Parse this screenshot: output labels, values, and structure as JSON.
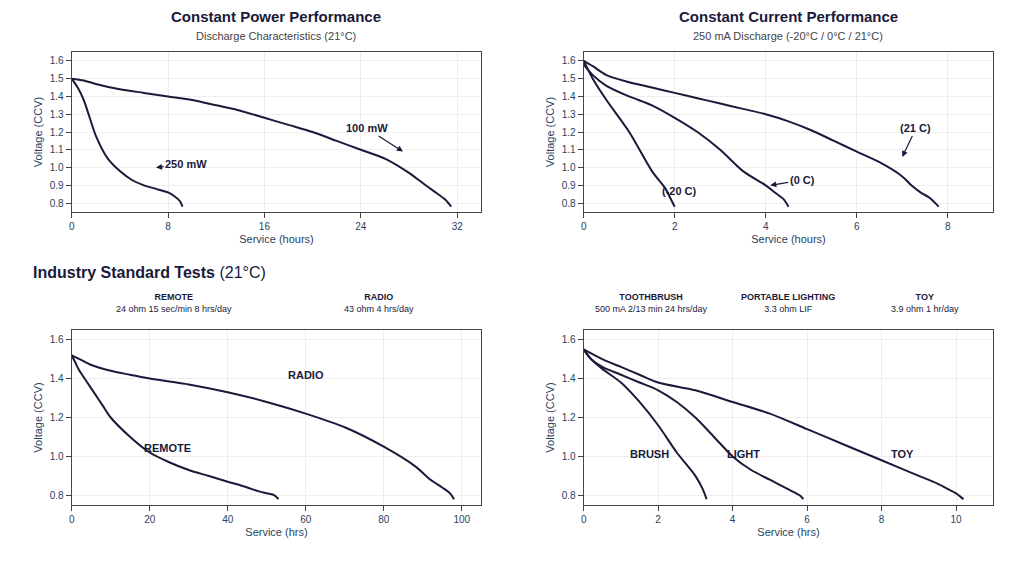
{
  "chart_data": [
    {
      "type": "line",
      "title": "Constant Power Performance",
      "subtitle": "Discharge Characteristics (21°C)",
      "x_label": "Service (hours)",
      "y_label": "Voltage (CCV)",
      "xlim": [
        0,
        34
      ],
      "ylim": [
        0.75,
        1.65
      ],
      "xticks": [
        0,
        8,
        16,
        24,
        32
      ],
      "yticks": [
        0.8,
        0.9,
        {
          "value": 1,
          "label": "1.0"
        },
        1.1,
        1.2,
        1.3,
        1.4,
        1.5,
        1.6
      ],
      "grid": true,
      "series": [
        {
          "color": "#1a1a3a",
          "x": [
            0,
            1,
            2,
            4,
            6,
            8,
            10,
            12,
            14,
            16,
            18,
            20,
            22,
            24,
            26,
            28,
            29,
            30,
            31,
            31.5
          ],
          "values": [
            1.5,
            1.49,
            1.47,
            1.44,
            1.42,
            1.4,
            1.38,
            1.35,
            1.32,
            1.28,
            1.24,
            1.2,
            1.15,
            1.1,
            1.05,
            0.97,
            0.92,
            0.87,
            0.82,
            0.78
          ]
        },
        {
          "color": "#1a1a3a",
          "x": [
            0,
            0.5,
            1,
            1.5,
            2,
            3,
            4,
            5,
            6,
            7,
            8,
            8.5,
            9,
            9.2
          ],
          "values": [
            1.5,
            1.45,
            1.38,
            1.28,
            1.18,
            1.05,
            0.98,
            0.93,
            0.9,
            0.88,
            0.86,
            0.84,
            0.81,
            0.78
          ]
        }
      ],
      "annotations": [
        {
          "text": "100 mW",
          "x": 24.5,
          "y": 1.22,
          "arrow_x": 27.5,
          "arrow_y": 1.09
        },
        {
          "text": "250 mW",
          "x": 9.5,
          "y": 1.02,
          "arrow_x": 7.0,
          "arrow_y": 1.0
        }
      ]
    },
    {
      "type": "line",
      "title": "Constant Current Performance",
      "subtitle": "250 mA Discharge (-20°C / 0°C / 21°C)",
      "x_label": "Service (hours)",
      "y_label": "Voltage (CCV)",
      "xlim": [
        0,
        9
      ],
      "ylim": [
        0.75,
        1.65
      ],
      "xticks": [
        0,
        2,
        4,
        6,
        8
      ],
      "yticks": [
        0.8,
        0.9,
        {
          "value": 1,
          "label": "1.0"
        },
        1.1,
        1.2,
        1.3,
        1.4,
        1.5,
        1.6
      ],
      "grid": true,
      "series": [
        {
          "color": "#1a1a3a",
          "x": [
            0,
            0.2,
            0.5,
            1,
            1.5,
            2,
            2.5,
            3,
            3.5,
            4,
            4.5,
            5,
            5.5,
            6,
            6.5,
            7,
            7.2,
            7.4,
            7.6,
            7.8
          ],
          "values": [
            1.6,
            1.57,
            1.52,
            1.48,
            1.45,
            1.42,
            1.39,
            1.36,
            1.33,
            1.3,
            1.26,
            1.21,
            1.15,
            1.09,
            1.03,
            0.95,
            0.9,
            0.86,
            0.83,
            0.78
          ]
        },
        {
          "color": "#1a1a3a",
          "x": [
            0,
            0.2,
            0.5,
            1,
            1.5,
            2,
            2.5,
            3,
            3.5,
            4,
            4.2,
            4.4,
            4.5
          ],
          "values": [
            1.58,
            1.52,
            1.46,
            1.4,
            1.35,
            1.28,
            1.2,
            1.1,
            0.98,
            0.9,
            0.86,
            0.82,
            0.78
          ]
        },
        {
          "color": "#1a1a3a",
          "x": [
            0,
            0.2,
            0.5,
            1,
            1.5,
            1.8,
            1.9,
            2.0
          ],
          "values": [
            1.6,
            1.5,
            1.38,
            1.2,
            0.98,
            0.88,
            0.83,
            0.78
          ]
        }
      ],
      "annotations": [
        {
          "text": "(21 C)",
          "x": 7.3,
          "y": 1.22,
          "arrow_x": 7.0,
          "arrow_y": 1.06
        },
        {
          "text": "(0 C)",
          "x": 4.8,
          "y": 0.93,
          "arrow_x": 4.1,
          "arrow_y": 0.9
        },
        {
          "text": "(-20 C)",
          "x": 2.1,
          "y": 0.87,
          "arrow_x": 1.75,
          "arrow_y": 0.84
        }
      ]
    },
    {
      "type": "line",
      "title": "Industry Standard Tests",
      "subtitle": "(21°C)",
      "x_label": "Service (hrs)",
      "y_label": "Voltage (CCV)",
      "xlim": [
        0,
        105
      ],
      "ylim": [
        0.75,
        1.65
      ],
      "xticks": [
        0,
        20,
        40,
        60,
        80,
        100
      ],
      "yticks": [
        0.8,
        {
          "value": 1,
          "label": "1.0"
        },
        1.2,
        1.4,
        1.6
      ],
      "grid": true,
      "series": [
        {
          "color": "#1a1a3a",
          "x": [
            0,
            2,
            5,
            10,
            15,
            20,
            30,
            40,
            50,
            60,
            70,
            80,
            88,
            92,
            95,
            97,
            98
          ],
          "values": [
            1.52,
            1.5,
            1.47,
            1.44,
            1.42,
            1.4,
            1.37,
            1.33,
            1.28,
            1.22,
            1.15,
            1.05,
            0.95,
            0.88,
            0.84,
            0.81,
            0.78
          ]
        },
        {
          "color": "#1a1a3a",
          "x": [
            0,
            1,
            2,
            4,
            6,
            8,
            10,
            15,
            20,
            25,
            30,
            35,
            40,
            45,
            48,
            50,
            52,
            53
          ],
          "values": [
            1.52,
            1.48,
            1.44,
            1.38,
            1.32,
            1.26,
            1.2,
            1.1,
            1.02,
            0.97,
            0.93,
            0.9,
            0.87,
            0.84,
            0.82,
            0.81,
            0.8,
            0.78
          ]
        }
      ],
      "annotations": [
        {
          "text": "RADIO",
          "x": 55,
          "y": 1.38
        },
        {
          "text": "REMOTE",
          "x": 18,
          "y": 1.0
        },
        {
          "text": "REMOTE\n24 ohm 15 sec/min 8 hrs/day"
        },
        {
          "text": "RADIO\n43 ohm 4 hrs/day"
        }
      ]
    },
    {
      "type": "line",
      "x_label": "Service (hrs)",
      "y_label": "Voltage (CCV)",
      "xlim": [
        0,
        11
      ],
      "ylim": [
        0.75,
        1.65
      ],
      "xticks": [
        0,
        2,
        4,
        6,
        8,
        10
      ],
      "yticks": [
        0.8,
        {
          "value": 1,
          "label": "1.0"
        },
        1.2,
        1.4,
        1.6
      ],
      "grid": true,
      "series": [
        {
          "color": "#1a1a3a",
          "x": [
            0,
            0.2,
            0.5,
            1,
            1.5,
            2,
            2.5,
            3,
            3.2,
            3.3
          ],
          "values": [
            1.55,
            1.5,
            1.45,
            1.38,
            1.28,
            1.16,
            1.02,
            0.9,
            0.83,
            0.78
          ]
        },
        {
          "color": "#1a1a3a",
          "x": [
            0,
            0.2,
            0.5,
            1,
            1.5,
            2,
            2.5,
            3,
            3.5,
            4,
            4.5,
            5,
            5.5,
            5.8,
            5.9
          ],
          "values": [
            1.55,
            1.5,
            1.46,
            1.42,
            1.38,
            1.34,
            1.28,
            1.2,
            1.1,
            1.0,
            0.93,
            0.88,
            0.83,
            0.8,
            0.78
          ]
        },
        {
          "color": "#1a1a3a",
          "x": [
            0,
            0.5,
            1,
            1.5,
            2,
            3,
            4,
            5,
            6,
            7,
            8,
            9,
            9.5,
            9.8,
            10,
            10.2
          ],
          "values": [
            1.55,
            1.5,
            1.46,
            1.42,
            1.38,
            1.34,
            1.28,
            1.22,
            1.14,
            1.06,
            0.98,
            0.9,
            0.86,
            0.83,
            0.81,
            0.78
          ]
        }
      ],
      "annotations": [
        {
          "text": "BRUSH",
          "x": 1.2,
          "y": 0.97
        },
        {
          "text": "LIGHT",
          "x": 3.8,
          "y": 0.97
        },
        {
          "text": "TOY",
          "x": 8.2,
          "y": 0.97
        },
        {
          "text": "TOOTHBRUSH\n500 mA 2/13 min 24 hrs/day"
        },
        {
          "text": "PORTABLE LIGHTING\n3.3 ohm LIF"
        },
        {
          "text": "TOY\n3.9 ohm 1 hr/day"
        }
      ]
    }
  ]
}
